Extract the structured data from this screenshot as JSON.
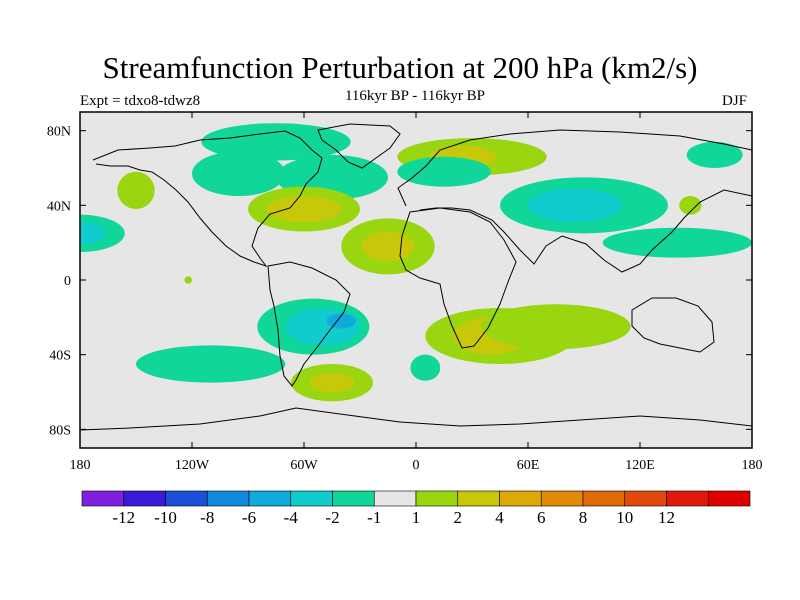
{
  "header": {
    "title": "Streamfunction Perturbation at 200 hPa (km2/s)",
    "subtitle": "116kyr BP - 116kyr BP",
    "expt": "Expt = tdxo8-tdwz8",
    "season": "DJF"
  },
  "axes": {
    "x_ticks": [
      {
        "value": -180,
        "label": "180"
      },
      {
        "value": -120,
        "label": "120W"
      },
      {
        "value": -60,
        "label": "60W"
      },
      {
        "value": 0,
        "label": "0"
      },
      {
        "value": 60,
        "label": "60E"
      },
      {
        "value": 120,
        "label": "120E"
      },
      {
        "value": 180,
        "label": "180"
      }
    ],
    "y_ticks": [
      {
        "value": 80,
        "label": "80N"
      },
      {
        "value": 40,
        "label": "40N"
      },
      {
        "value": 0,
        "label": "0"
      },
      {
        "value": -40,
        "label": "40S"
      },
      {
        "value": -80,
        "label": "80S"
      }
    ],
    "lon_range": [
      -180,
      180
    ],
    "lat_range": [
      -90,
      90
    ]
  },
  "colorbar": {
    "colors": [
      "#7f1fe0",
      "#3a1ad6",
      "#1a4fd6",
      "#1188dd",
      "#11aadd",
      "#11cccc",
      "#11d69a",
      "#e6e6e6",
      "#99d60f",
      "#c8c80a",
      "#dcaa06",
      "#e08a06",
      "#e06a06",
      "#e04a0a",
      "#e01a0a",
      "#e00000"
    ],
    "labels": [
      "-12",
      "-10",
      "-8",
      "-6",
      "-4",
      "-2",
      "-1",
      "1",
      "2",
      "4",
      "6",
      "8",
      "10",
      "12"
    ]
  },
  "map": {
    "background_color": "#e6e6e6",
    "regions": [
      {
        "name": "n-pacific-negative",
        "level": "-1",
        "cx": -180,
        "cy": 25,
        "rx": 24,
        "ry": 10
      },
      {
        "name": "n-pacific-negative-2",
        "level": "-2",
        "cx": -180,
        "cy": 25,
        "rx": 14,
        "ry": 6
      },
      {
        "name": "arctic-negative",
        "level": "-1",
        "cx": -75,
        "cy": 74,
        "rx": 40,
        "ry": 10
      },
      {
        "name": "hudson-negative",
        "level": "-1",
        "cx": -95,
        "cy": 57,
        "rx": 25,
        "ry": 12
      },
      {
        "name": "n-atlantic-negative",
        "level": "-1",
        "cx": -45,
        "cy": 55,
        "rx": 30,
        "ry": 12
      },
      {
        "name": "alaska-positive",
        "level": "1",
        "cx": -150,
        "cy": 48,
        "rx": 10,
        "ry": 10
      },
      {
        "name": "n-atlantic-positive",
        "level": "1",
        "cx": -60,
        "cy": 38,
        "rx": 30,
        "ry": 12
      },
      {
        "name": "n-atlantic-positive-2",
        "level": "2",
        "cx": -60,
        "cy": 38,
        "rx": 20,
        "ry": 7
      },
      {
        "name": "europe-positive",
        "level": "1",
        "cx": 30,
        "cy": 66,
        "rx": 40,
        "ry": 10
      },
      {
        "name": "europe-positive-2",
        "level": "2",
        "cx": 25,
        "cy": 66,
        "rx": 18,
        "ry": 6
      },
      {
        "name": "europe-negative",
        "level": "-1",
        "cx": 15,
        "cy": 58,
        "rx": 25,
        "ry": 8
      },
      {
        "name": "asia-negative",
        "level": "-1",
        "cx": 90,
        "cy": 40,
        "rx": 45,
        "ry": 15
      },
      {
        "name": "asia-negative-2",
        "level": "-2",
        "cx": 85,
        "cy": 40,
        "rx": 25,
        "ry": 9
      },
      {
        "name": "asia-negative-tail",
        "level": "-1",
        "cx": 140,
        "cy": 20,
        "rx": 40,
        "ry": 8
      },
      {
        "name": "nw-pacific-negative",
        "level": "-1",
        "cx": 160,
        "cy": 67,
        "rx": 15,
        "ry": 7
      },
      {
        "name": "japan-positive",
        "level": "1",
        "cx": 147,
        "cy": 40,
        "rx": 6,
        "ry": 5
      },
      {
        "name": "trop-atlantic-positive",
        "level": "1",
        "cx": -15,
        "cy": 18,
        "rx": 25,
        "ry": 15
      },
      {
        "name": "trop-atlantic-positive-2",
        "level": "2",
        "cx": -15,
        "cy": 18,
        "rx": 14,
        "ry": 8
      },
      {
        "name": "pacific-dot-positive",
        "level": "1",
        "cx": -122,
        "cy": 0,
        "rx": 2,
        "ry": 2
      },
      {
        "name": "s-america-negative",
        "level": "-1",
        "cx": -55,
        "cy": -25,
        "rx": 30,
        "ry": 15
      },
      {
        "name": "s-america-negative-2",
        "level": "-2",
        "cx": -50,
        "cy": -25,
        "rx": 20,
        "ry": 10
      },
      {
        "name": "s-america-negative-4",
        "level": "-4",
        "cx": -40,
        "cy": -22,
        "rx": 8,
        "ry": 4
      },
      {
        "name": "s-pacific-negative",
        "level": "-1",
        "cx": -110,
        "cy": -45,
        "rx": 40,
        "ry": 10
      },
      {
        "name": "s-atlantic-positive",
        "level": "1",
        "cx": -45,
        "cy": -55,
        "rx": 22,
        "ry": 10
      },
      {
        "name": "s-atlantic-positive-2",
        "level": "2",
        "cx": -45,
        "cy": -55,
        "rx": 12,
        "ry": 5
      },
      {
        "name": "s-atlantic-negative",
        "level": "-1",
        "cx": 5,
        "cy": -47,
        "rx": 8,
        "ry": 7
      },
      {
        "name": "s-africa-positive",
        "level": "1",
        "cx": 45,
        "cy": -30,
        "rx": 40,
        "ry": 15
      },
      {
        "name": "s-africa-positive-2",
        "level": "2",
        "cx": 40,
        "cy": -30,
        "rx": 20,
        "ry": 10
      },
      {
        "name": "indian-positive",
        "level": "1",
        "cx": 75,
        "cy": -25,
        "rx": 40,
        "ry": 12
      }
    ]
  }
}
